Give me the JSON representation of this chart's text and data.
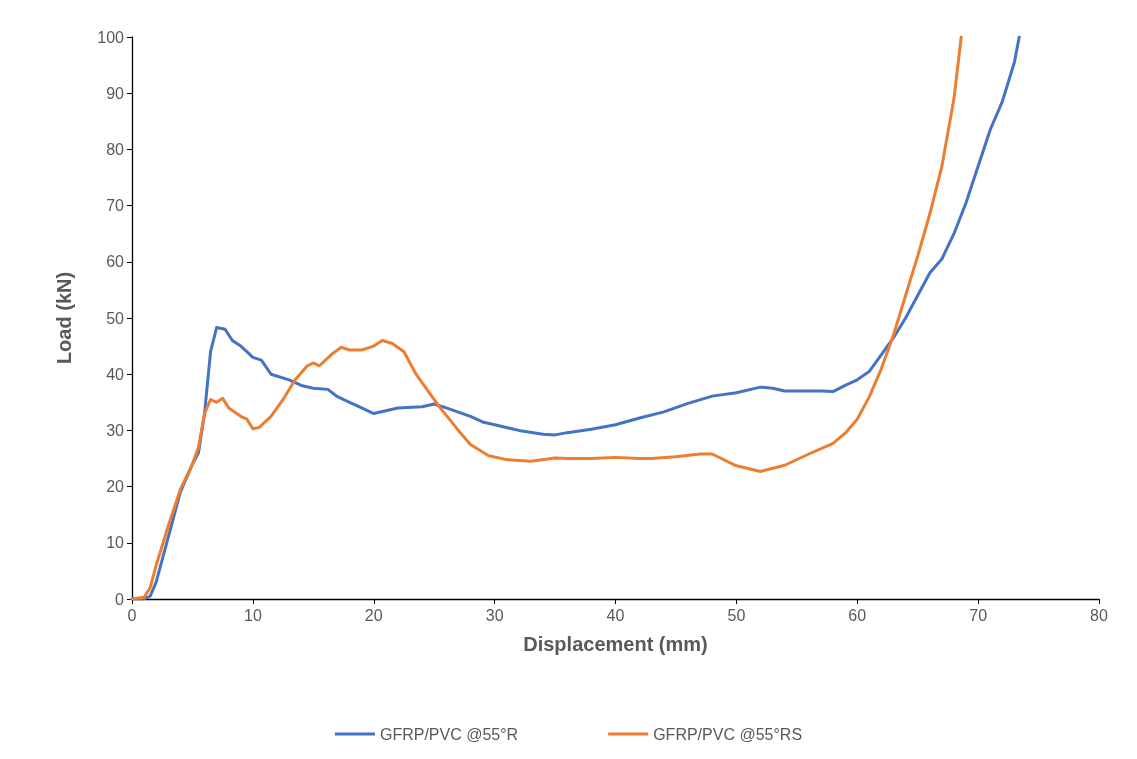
{
  "chart_data": {
    "type": "line",
    "xlabel": "Displacement (mm)",
    "ylabel": "Load (kN)",
    "xlim": [
      0,
      80
    ],
    "xticks": [
      0,
      10,
      20,
      30,
      40,
      50,
      60,
      70,
      80
    ],
    "ylim": [
      0,
      100
    ],
    "yticks": [
      0,
      10,
      20,
      30,
      40,
      50,
      60,
      70,
      80,
      90,
      100
    ],
    "grid": false,
    "legend": "bottom",
    "marker": "none",
    "line_style": "solid",
    "series": [
      {
        "name": "GFRP/PVC @55°R",
        "color": "#4472c4",
        "x": [
          0,
          1,
          1.5,
          2,
          3,
          4,
          5,
          5.5,
          6,
          6.5,
          7,
          7.7,
          8.3,
          9,
          9.5,
          10,
          10.7,
          11.5,
          13,
          14,
          15,
          16.2,
          17,
          18,
          19,
          20,
          21,
          22,
          24,
          25,
          26,
          28,
          29,
          30,
          32,
          34,
          35,
          36,
          38,
          40,
          42,
          44,
          46,
          48,
          50,
          52,
          53,
          54,
          56,
          57,
          58,
          59,
          60,
          61,
          62,
          63,
          64,
          65,
          66,
          67,
          68,
          69,
          70,
          71,
          72,
          73,
          73.4
        ],
        "values": [
          0,
          0,
          0.5,
          3,
          11,
          19,
          24,
          26,
          33,
          44,
          48.3,
          48,
          46,
          45,
          44,
          43,
          42.5,
          40,
          39,
          38,
          37.5,
          37.3,
          36,
          35,
          34,
          33,
          33.5,
          34,
          34.2,
          34.7,
          34,
          32.5,
          31.5,
          31,
          30,
          29.3,
          29.2,
          29.6,
          30.2,
          31,
          32.2,
          33.3,
          34.8,
          36.1,
          36.7,
          37.7,
          37.5,
          37,
          37,
          37,
          36.9,
          38,
          39,
          40.5,
          43.5,
          46.5,
          50,
          54,
          58,
          60.5,
          65,
          70.5,
          77,
          83.5,
          88.5,
          95.5,
          100
        ]
      },
      {
        "name": "GFRP/PVC @55°RS",
        "color": "#ed7d31",
        "x": [
          0,
          1,
          1.5,
          2,
          3,
          4,
          5,
          5.5,
          6,
          6.5,
          7,
          7.5,
          8,
          9,
          9.5,
          10,
          10.5,
          11.5,
          12.5,
          13.5,
          14.5,
          15,
          15.5,
          16.5,
          17.3,
          18,
          19,
          20,
          20.7,
          21.5,
          22.5,
          23.5,
          24.5,
          25.5,
          27,
          28,
          29.5,
          31,
          33,
          35,
          36,
          38,
          40,
          42,
          43,
          45,
          47,
          48,
          50,
          52,
          54,
          56,
          58,
          59,
          60,
          61,
          62,
          63,
          64,
          65,
          66,
          67,
          68,
          68.6
        ],
        "values": [
          0,
          0.3,
          2,
          6,
          13,
          19.5,
          24,
          27,
          33,
          35.5,
          35,
          35.7,
          34,
          32.5,
          32,
          30.3,
          30.5,
          32.5,
          35.5,
          39,
          41.5,
          42,
          41.5,
          43.5,
          44.8,
          44.3,
          44.3,
          45,
          46,
          45.5,
          44,
          40,
          37,
          34,
          30,
          27.5,
          25.5,
          24.8,
          24.5,
          25.1,
          25,
          25,
          25.2,
          25,
          25,
          25.3,
          25.8,
          25.8,
          23.7,
          22.7,
          23.8,
          25.8,
          27.7,
          29.5,
          32,
          36,
          41,
          47,
          54,
          61,
          68.5,
          77,
          89,
          100
        ]
      }
    ]
  }
}
